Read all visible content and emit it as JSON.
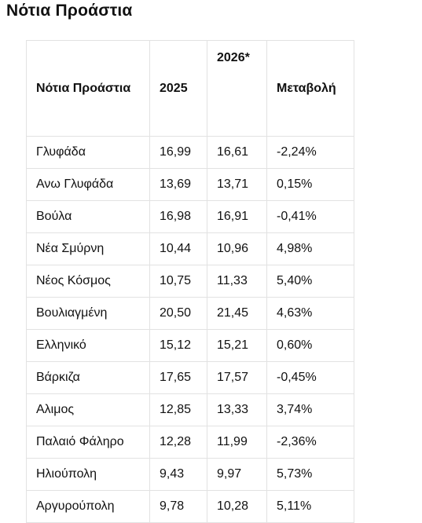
{
  "title": "Νότια Προάστια",
  "table": {
    "headers": [
      "Νότια Προάστια",
      "2025",
      "2026*",
      "Μεταβολή"
    ],
    "rows": [
      [
        "Γλυφάδα",
        "16,99",
        "16,61",
        "-2,24%"
      ],
      [
        "Ανω Γλυφάδα",
        "13,69",
        "13,71",
        "0,15%"
      ],
      [
        "Βούλα",
        "16,98",
        "16,91",
        "-0,41%"
      ],
      [
        "Νέα Σμύρνη",
        "10,44",
        "10,96",
        "4,98%"
      ],
      [
        "Νέος Κόσμος",
        "10,75",
        "11,33",
        "5,40%"
      ],
      [
        "Βουλιαγμένη",
        "20,50",
        "21,45",
        "4,63%"
      ],
      [
        "Ελληνικό",
        "15,12",
        "15,21",
        "0,60%"
      ],
      [
        "Βάρκιζα",
        "17,65",
        "17,57",
        "-0,45%"
      ],
      [
        "Αλιμος",
        "12,85",
        "13,33",
        "3,74%"
      ],
      [
        "Παλαιό Φάληρο",
        "12,28",
        "11,99",
        "-2,36%"
      ],
      [
        "Ηλιούπολη",
        "9,43",
        "9,97",
        "5,73%"
      ],
      [
        "Αργυρούπολη",
        "9,78",
        "10,28",
        "5,11%"
      ]
    ]
  }
}
